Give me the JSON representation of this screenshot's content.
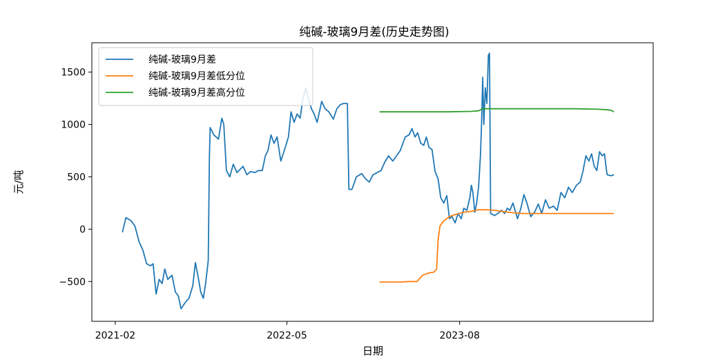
{
  "chart_data": {
    "type": "line",
    "title": "纯碱-玻璃9月差(历史走势图)",
    "xlabel": "日期",
    "ylabel": "元/吨",
    "x_range": [
      "2020-12-01",
      "2024-12-25"
    ],
    "ylim": [
      -880,
      1780
    ],
    "x_ticks": [
      {
        "date": "2021-02-01",
        "label": "2021-02"
      },
      {
        "date": "2022-05-01",
        "label": "2022-05"
      },
      {
        "date": "2023-08-01",
        "label": "2023-08"
      }
    ],
    "y_ticks": [
      {
        "value": -500,
        "label": "−500"
      },
      {
        "value": 0,
        "label": "0"
      },
      {
        "value": 500,
        "label": "500"
      },
      {
        "value": 1000,
        "label": "1000"
      },
      {
        "value": 1500,
        "label": "1500"
      }
    ],
    "grid": false,
    "legend_position": "top-left",
    "series": [
      {
        "name": "纯碱-玻璃9月差",
        "color": "#1f77b4",
        "points": [
          [
            "2021-02-20",
            -30
          ],
          [
            "2021-03-01",
            110
          ],
          [
            "2021-03-15",
            80
          ],
          [
            "2021-03-25",
            30
          ],
          [
            "2021-04-05",
            -120
          ],
          [
            "2021-04-15",
            -200
          ],
          [
            "2021-04-25",
            -330
          ],
          [
            "2021-05-05",
            -350
          ],
          [
            "2021-05-12",
            -330
          ],
          [
            "2021-05-20",
            -620
          ],
          [
            "2021-05-28",
            -480
          ],
          [
            "2021-06-05",
            -520
          ],
          [
            "2021-06-12",
            -380
          ],
          [
            "2021-06-20",
            -480
          ],
          [
            "2021-07-01",
            -440
          ],
          [
            "2021-07-10",
            -600
          ],
          [
            "2021-07-18",
            -640
          ],
          [
            "2021-07-25",
            -760
          ],
          [
            "2021-08-05",
            -700
          ],
          [
            "2021-08-15",
            -660
          ],
          [
            "2021-08-25",
            -540
          ],
          [
            "2021-09-01",
            -320
          ],
          [
            "2021-09-08",
            -450
          ],
          [
            "2021-09-15",
            -600
          ],
          [
            "2021-09-22",
            -660
          ],
          [
            "2021-09-28",
            -520
          ],
          [
            "2021-10-05",
            -300
          ],
          [
            "2021-10-08",
            700
          ],
          [
            "2021-10-10",
            970
          ],
          [
            "2021-10-20",
            900
          ],
          [
            "2021-11-01",
            860
          ],
          [
            "2021-11-10",
            1060
          ],
          [
            "2021-11-15",
            1000
          ],
          [
            "2021-11-22",
            560
          ],
          [
            "2021-12-01",
            500
          ],
          [
            "2021-12-10",
            620
          ],
          [
            "2021-12-20",
            540
          ],
          [
            "2022-01-05",
            600
          ],
          [
            "2022-01-15",
            520
          ],
          [
            "2022-01-25",
            550
          ],
          [
            "2022-02-05",
            540
          ],
          [
            "2022-02-15",
            560
          ],
          [
            "2022-02-25",
            560
          ],
          [
            "2022-03-05",
            700
          ],
          [
            "2022-03-12",
            750
          ],
          [
            "2022-03-20",
            900
          ],
          [
            "2022-03-28",
            820
          ],
          [
            "2022-04-05",
            880
          ],
          [
            "2022-04-15",
            650
          ],
          [
            "2022-04-25",
            760
          ],
          [
            "2022-05-05",
            880
          ],
          [
            "2022-05-12",
            1120
          ],
          [
            "2022-05-20",
            1020
          ],
          [
            "2022-05-28",
            1100
          ],
          [
            "2022-06-05",
            1060
          ],
          [
            "2022-06-12",
            1240
          ],
          [
            "2022-06-20",
            1350
          ],
          [
            "2022-06-28",
            1230
          ],
          [
            "2022-07-05",
            1150
          ],
          [
            "2022-07-12",
            1100
          ],
          [
            "2022-07-20",
            1020
          ],
          [
            "2022-08-01",
            1220
          ],
          [
            "2022-08-10",
            1150
          ],
          [
            "2022-08-20",
            1120
          ],
          [
            "2022-09-01",
            1050
          ],
          [
            "2022-09-10",
            1150
          ],
          [
            "2022-09-20",
            1190
          ],
          [
            "2022-09-28",
            1200
          ],
          [
            "2022-10-08",
            1200
          ],
          [
            "2022-10-12",
            380
          ],
          [
            "2022-10-20",
            380
          ],
          [
            "2022-11-01",
            500
          ],
          [
            "2022-11-15",
            530
          ],
          [
            "2022-11-25",
            480
          ],
          [
            "2022-12-05",
            450
          ],
          [
            "2022-12-15",
            520
          ],
          [
            "2023-01-05",
            560
          ],
          [
            "2023-01-15",
            640
          ],
          [
            "2023-01-25",
            700
          ],
          [
            "2023-02-05",
            650
          ],
          [
            "2023-02-15",
            700
          ],
          [
            "2023-02-25",
            750
          ],
          [
            "2023-03-10",
            880
          ],
          [
            "2023-03-20",
            900
          ],
          [
            "2023-03-28",
            960
          ],
          [
            "2023-04-05",
            880
          ],
          [
            "2023-04-12",
            920
          ],
          [
            "2023-04-20",
            820
          ],
          [
            "2023-04-28",
            800
          ],
          [
            "2023-05-05",
            880
          ],
          [
            "2023-05-12",
            780
          ],
          [
            "2023-05-20",
            760
          ],
          [
            "2023-05-28",
            550
          ],
          [
            "2023-06-05",
            480
          ],
          [
            "2023-06-12",
            300
          ],
          [
            "2023-06-20",
            250
          ],
          [
            "2023-06-28",
            320
          ],
          [
            "2023-07-05",
            100
          ],
          [
            "2023-07-12",
            120
          ],
          [
            "2023-07-20",
            60
          ],
          [
            "2023-07-28",
            150
          ],
          [
            "2023-08-05",
            100
          ],
          [
            "2023-08-12",
            200
          ],
          [
            "2023-08-20",
            180
          ],
          [
            "2023-08-28",
            300
          ],
          [
            "2023-09-01",
            420
          ],
          [
            "2023-09-05",
            350
          ],
          [
            "2023-09-10",
            160
          ],
          [
            "2023-09-15",
            250
          ],
          [
            "2023-09-20",
            400
          ],
          [
            "2023-09-25",
            700
          ],
          [
            "2023-09-28",
            1000
          ],
          [
            "2023-10-01",
            1450
          ],
          [
            "2023-10-04",
            1000
          ],
          [
            "2023-10-08",
            1350
          ],
          [
            "2023-10-12",
            1200
          ],
          [
            "2023-10-16",
            1660
          ],
          [
            "2023-10-19",
            1680
          ],
          [
            "2023-10-22",
            150
          ],
          [
            "2023-11-01",
            130
          ],
          [
            "2023-11-10",
            150
          ],
          [
            "2023-11-20",
            180
          ],
          [
            "2023-11-28",
            150
          ],
          [
            "2023-12-05",
            200
          ],
          [
            "2023-12-12",
            180
          ],
          [
            "2023-12-20",
            250
          ],
          [
            "2024-01-01",
            100
          ],
          [
            "2024-01-10",
            200
          ],
          [
            "2024-01-18",
            330
          ],
          [
            "2024-01-26",
            250
          ],
          [
            "2024-02-05",
            120
          ],
          [
            "2024-02-15",
            160
          ],
          [
            "2024-02-25",
            240
          ],
          [
            "2024-03-05",
            150
          ],
          [
            "2024-03-15",
            280
          ],
          [
            "2024-03-25",
            200
          ],
          [
            "2024-04-05",
            220
          ],
          [
            "2024-04-15",
            180
          ],
          [
            "2024-04-25",
            350
          ],
          [
            "2024-05-05",
            300
          ],
          [
            "2024-05-15",
            400
          ],
          [
            "2024-05-25",
            350
          ],
          [
            "2024-06-05",
            420
          ],
          [
            "2024-06-15",
            450
          ],
          [
            "2024-06-22",
            550
          ],
          [
            "2024-06-30",
            700
          ],
          [
            "2024-07-08",
            650
          ],
          [
            "2024-07-15",
            720
          ],
          [
            "2024-07-22",
            600
          ],
          [
            "2024-07-29",
            560
          ],
          [
            "2024-08-05",
            740
          ],
          [
            "2024-08-12",
            700
          ],
          [
            "2024-08-18",
            720
          ],
          [
            "2024-08-25",
            520
          ],
          [
            "2024-09-05",
            510
          ],
          [
            "2024-09-12",
            520
          ]
        ]
      },
      {
        "name": "纯碱-玻璃9月差低分位",
        "color": "#ff7f0e",
        "points": [
          [
            "2023-01-01",
            -505
          ],
          [
            "2023-03-01",
            -505
          ],
          [
            "2023-03-20",
            -500
          ],
          [
            "2023-04-10",
            -500
          ],
          [
            "2023-04-25",
            -440
          ],
          [
            "2023-05-10",
            -420
          ],
          [
            "2023-05-25",
            -410
          ],
          [
            "2023-06-01",
            -380
          ],
          [
            "2023-06-05",
            -100
          ],
          [
            "2023-06-10",
            30
          ],
          [
            "2023-06-20",
            80
          ],
          [
            "2023-07-05",
            120
          ],
          [
            "2023-07-20",
            140
          ],
          [
            "2023-08-10",
            160
          ],
          [
            "2023-09-01",
            170
          ],
          [
            "2023-09-20",
            185
          ],
          [
            "2023-10-10",
            185
          ],
          [
            "2023-11-01",
            180
          ],
          [
            "2023-12-10",
            160
          ],
          [
            "2024-01-15",
            150
          ],
          [
            "2024-03-01",
            150
          ],
          [
            "2024-06-01",
            150
          ],
          [
            "2024-09-12",
            150
          ]
        ]
      },
      {
        "name": "纯碱-玻璃9月差高分位",
        "color": "#2ca02c",
        "points": [
          [
            "2023-01-01",
            1120
          ],
          [
            "2023-04-01",
            1120
          ],
          [
            "2023-07-01",
            1120
          ],
          [
            "2023-09-01",
            1125
          ],
          [
            "2023-09-20",
            1130
          ],
          [
            "2023-10-01",
            1150
          ],
          [
            "2023-12-01",
            1150
          ],
          [
            "2024-03-01",
            1150
          ],
          [
            "2024-06-01",
            1150
          ],
          [
            "2024-08-01",
            1145
          ],
          [
            "2024-08-25",
            1140
          ],
          [
            "2024-09-05",
            1135
          ],
          [
            "2024-09-12",
            1120
          ]
        ]
      }
    ]
  }
}
